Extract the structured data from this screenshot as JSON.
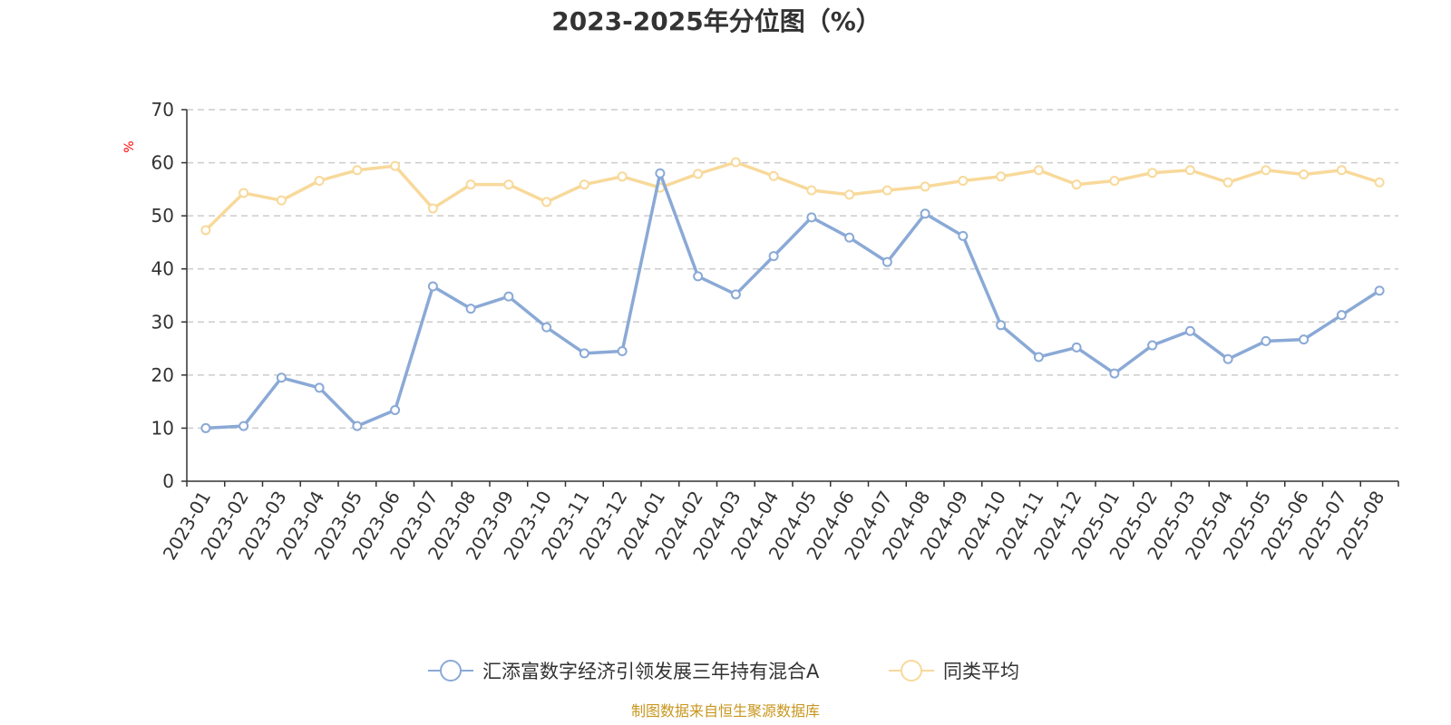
{
  "colors": {
    "fund": "#8aa9d6",
    "peer": "#f8d99a",
    "grid": "#cccccc",
    "axis": "#333333",
    "source": "#c8961e",
    "unit": "#ff0000"
  },
  "source_text": "制图数据来自恒生聚源数据库",
  "chart_data": {
    "type": "line",
    "title": "2023-2025年分位图（%）",
    "ylabel": "%",
    "xlabel": "",
    "ylim": [
      0,
      70
    ],
    "yticks": [
      0,
      10,
      20,
      30,
      40,
      50,
      60,
      70
    ],
    "grid": true,
    "legend_position": "bottom",
    "categories": [
      "2023-01",
      "2023-02",
      "2023-03",
      "2023-04",
      "2023-05",
      "2023-06",
      "2023-07",
      "2023-08",
      "2023-09",
      "2023-10",
      "2023-11",
      "2023-12",
      "2024-01",
      "2024-02",
      "2024-03",
      "2024-04",
      "2024-05",
      "2024-06",
      "2024-07",
      "2024-08",
      "2024-09",
      "2024-10",
      "2024-11",
      "2024-12",
      "2025-01",
      "2025-02",
      "2025-03",
      "2025-04",
      "2025-05",
      "2025-06",
      "2025-07",
      "2025-08"
    ],
    "series": [
      {
        "name": "汇添富数字经济引领发展三年持有混合A",
        "color": "#8aa9d6",
        "values": [
          10.0,
          10.4,
          19.5,
          17.6,
          10.4,
          13.4,
          36.7,
          32.5,
          34.8,
          29.0,
          24.1,
          24.5,
          58.0,
          38.6,
          35.2,
          42.4,
          49.7,
          45.9,
          41.3,
          50.4,
          46.2,
          29.4,
          23.4,
          25.2,
          20.3,
          25.6,
          28.3,
          23.0,
          26.4,
          26.7,
          31.3,
          35.9
        ]
      },
      {
        "name": "同类平均",
        "color": "#f8d99a",
        "values": [
          47.3,
          54.3,
          52.9,
          56.6,
          58.6,
          59.4,
          51.4,
          55.9,
          55.9,
          52.6,
          55.9,
          57.4,
          55.3,
          57.9,
          60.1,
          57.5,
          54.8,
          54.0,
          54.8,
          55.5,
          56.6,
          57.4,
          58.6,
          55.9,
          56.6,
          58.1,
          58.6,
          56.3,
          58.6,
          57.8,
          58.6,
          56.3
        ]
      }
    ]
  }
}
